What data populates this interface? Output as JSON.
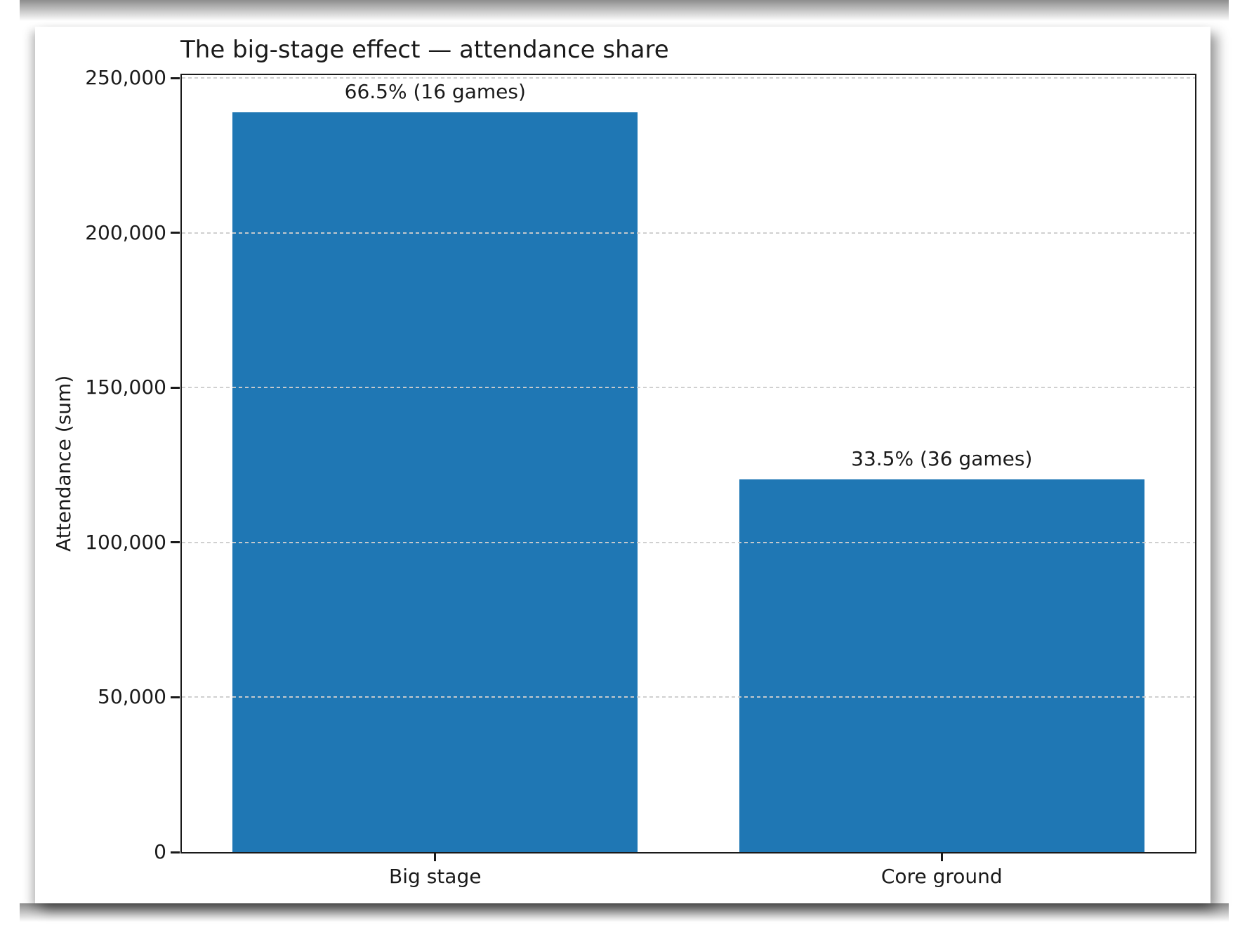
{
  "chart_data": {
    "type": "bar",
    "title": "The big-stage effect — attendance share",
    "ylabel": "Attendance (sum)",
    "xlabel": "",
    "categories": [
      "Big stage",
      "Core ground"
    ],
    "values": [
      239000,
      120500
    ],
    "bar_labels": [
      "66.5% (16 games)",
      "33.5% (36 games)"
    ],
    "yticks": [
      0,
      50000,
      100000,
      150000,
      200000,
      250000
    ],
    "ytick_labels": [
      "0",
      "50,000",
      "100,000",
      "150,000",
      "200,000",
      "250,000"
    ],
    "ylim": [
      0,
      251000
    ],
    "grid": "horizontal-dashed, drawn above bars",
    "legend": "none",
    "colors": {
      "bar": "#1f77b4",
      "spine": "#1a1a1a",
      "gridline": "#cdcdcd",
      "text": "#1a1a1a",
      "background": "#ffffff"
    }
  }
}
